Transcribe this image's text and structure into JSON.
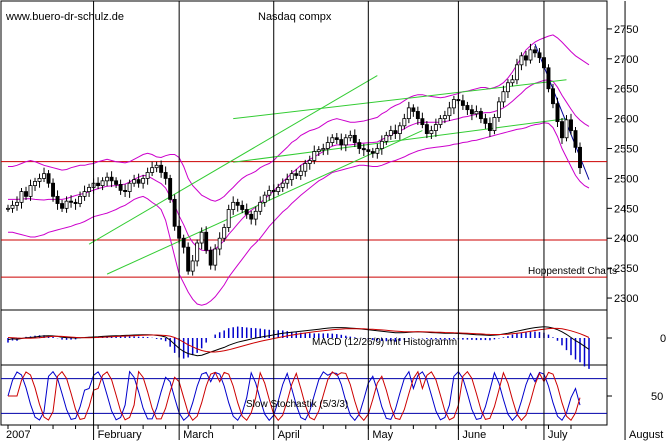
{
  "header": {
    "site": "www.buero-dr-schulz.de",
    "title": "Nasdaq compx",
    "source": "Hoppenstedt Charts"
  },
  "colors": {
    "bollinger": "#cc00cc",
    "trend": "#33cc33",
    "support": "#cc0000",
    "downtrend": "#000099",
    "macd_histogram": "#0000cc",
    "macd_line": "#000000",
    "signal_line": "#cc0000",
    "stoch_k": "#0000cc",
    "stoch_d": "#cc0000",
    "reference": "#0000aa"
  },
  "chart_data": [
    {
      "type": "candlestick",
      "title": "Nasdaq compx",
      "ylim": [
        2280,
        2790
      ],
      "yticks": [
        2300,
        2350,
        2400,
        2450,
        2500,
        2550,
        2600,
        2650,
        2700,
        2750
      ],
      "support_levels": [
        2528,
        2397,
        2335
      ],
      "close": [
        2450,
        2455,
        2460,
        2478,
        2470,
        2488,
        2495,
        2500,
        2508,
        2492,
        2470,
        2458,
        2450,
        2462,
        2460,
        2458,
        2470,
        2478,
        2485,
        2492,
        2488,
        2496,
        2502,
        2496,
        2490,
        2480,
        2478,
        2492,
        2498,
        2492,
        2500,
        2510,
        2518,
        2522,
        2510,
        2500,
        2465,
        2420,
        2400,
        2385,
        2345,
        2362,
        2392,
        2410,
        2380,
        2355,
        2382,
        2400,
        2418,
        2448,
        2460,
        2455,
        2448,
        2440,
        2432,
        2445,
        2460,
        2472,
        2480,
        2478,
        2485,
        2492,
        2498,
        2508,
        2505,
        2512,
        2525,
        2530,
        2545,
        2548,
        2550,
        2560,
        2568,
        2565,
        2556,
        2568,
        2572,
        2560,
        2550,
        2548,
        2545,
        2542,
        2550,
        2562,
        2572,
        2580,
        2575,
        2588,
        2600,
        2618,
        2612,
        2600,
        2590,
        2575,
        2580,
        2590,
        2600,
        2605,
        2618,
        2632,
        2630,
        2622,
        2615,
        2608,
        2612,
        2600,
        2592,
        2580,
        2602,
        2628,
        2645,
        2660,
        2665,
        2690,
        2705,
        2698,
        2715,
        2710,
        2702,
        2685,
        2650,
        2625,
        2595,
        2568,
        2598,
        2580,
        2552,
        2518
      ],
      "bollinger_upper": [
        2520,
        2520,
        2522,
        2525,
        2528,
        2530,
        2528,
        2525,
        2522,
        2520,
        2518,
        2516,
        2514,
        2515,
        2518,
        2520,
        2522,
        2522,
        2524,
        2525,
        2528,
        2530,
        2532,
        2530,
        2528,
        2527,
        2526,
        2528,
        2532,
        2536,
        2540,
        2542,
        2540,
        2536,
        2535,
        2538,
        2540,
        2540,
        2535,
        2520,
        2500,
        2488,
        2480,
        2472,
        2468,
        2464,
        2462,
        2465,
        2470,
        2478,
        2485,
        2493,
        2500,
        2505,
        2508,
        2512,
        2518,
        2522,
        2525,
        2530,
        2538,
        2545,
        2552,
        2560,
        2565,
        2572,
        2576,
        2580,
        2582,
        2585,
        2590,
        2595,
        2598,
        2600,
        2598,
        2596,
        2594,
        2594,
        2595,
        2596,
        2598,
        2600,
        2602,
        2608,
        2612,
        2618,
        2622,
        2625,
        2630,
        2635,
        2638,
        2640,
        2640,
        2638,
        2637,
        2636,
        2635,
        2636,
        2638,
        2640,
        2642,
        2645,
        2646,
        2648,
        2650,
        2652,
        2652,
        2650,
        2652,
        2655,
        2660,
        2668,
        2678,
        2690,
        2702,
        2715,
        2722,
        2728,
        2732,
        2735,
        2738,
        2740,
        2735,
        2728,
        2720,
        2712,
        2705,
        2700,
        2695,
        2690
      ],
      "bollinger_lower": [
        2410,
        2410,
        2408,
        2406,
        2404,
        2402,
        2402,
        2404,
        2406,
        2410,
        2412,
        2414,
        2416,
        2418,
        2420,
        2423,
        2425,
        2428,
        2432,
        2436,
        2438,
        2440,
        2442,
        2445,
        2448,
        2452,
        2455,
        2460,
        2465,
        2468,
        2470,
        2466,
        2460,
        2455,
        2448,
        2430,
        2400,
        2370,
        2340,
        2325,
        2310,
        2298,
        2290,
        2288,
        2290,
        2295,
        2302,
        2312,
        2322,
        2335,
        2345,
        2355,
        2365,
        2375,
        2385,
        2392,
        2400,
        2410,
        2420,
        2428,
        2436,
        2444,
        2450,
        2458,
        2465,
        2472,
        2478,
        2484,
        2490,
        2496,
        2500,
        2505,
        2510,
        2512,
        2514,
        2516,
        2518,
        2520,
        2522,
        2522,
        2521,
        2520,
        2520,
        2522,
        2525,
        2528,
        2530,
        2533,
        2536,
        2540,
        2543,
        2546,
        2548,
        2550,
        2551,
        2552,
        2553,
        2554,
        2555,
        2557,
        2558,
        2560,
        2561,
        2563,
        2564,
        2566,
        2568,
        2570,
        2572,
        2574,
        2576,
        2578,
        2580,
        2582,
        2583,
        2585,
        2588,
        2590,
        2591,
        2593,
        2592,
        2585,
        2570,
        2550,
        2535,
        2520,
        2505,
        2495,
        2488,
        2484
      ],
      "trendlines": [
        {
          "name": "lower-channel",
          "points": [
            [
              22,
              2340
            ],
            [
              92,
              2580
            ]
          ]
        },
        {
          "name": "upper-channel",
          "points": [
            [
              18,
              2390
            ],
            [
              82,
              2672
            ]
          ]
        },
        {
          "name": "mid-channel",
          "points": [
            [
              50,
              2527
            ],
            [
              124,
              2600
            ]
          ]
        },
        {
          "name": "upper-rising",
          "points": [
            [
              50,
              2600
            ],
            [
              124,
              2665
            ]
          ]
        },
        {
          "name": "downtrend",
          "points": [
            [
              117,
              2725
            ],
            [
              129,
              2498
            ]
          ]
        }
      ]
    },
    {
      "type": "line",
      "title": "MACD (12/26/9) mit Histogramm",
      "ylim": [
        -25,
        25
      ],
      "yticks": [
        0
      ],
      "macd": [
        -1.5,
        -0.8,
        -1.2,
        -0.5,
        0.2,
        0.5,
        1.0,
        1.5,
        2.0,
        2.2,
        2.0,
        1.5,
        0.8,
        0.4,
        0.2,
        0.0,
        0.3,
        0.5,
        0.8,
        1.0,
        1.2,
        1.5,
        1.8,
        2.0,
        2.2,
        2.3,
        2.5,
        2.7,
        2.9,
        3.0,
        3.1,
        3.2,
        3.0,
        2.5,
        2.0,
        1.0,
        -2.0,
        -6.0,
        -10.0,
        -13.0,
        -15.0,
        -16.0,
        -17.0,
        -16.5,
        -15.0,
        -13.5,
        -12.0,
        -10.5,
        -9.0,
        -7.0,
        -5.5,
        -4.0,
        -3.0,
        -2.0,
        -1.0,
        0.0,
        0.8,
        1.5,
        2.2,
        3.0,
        3.8,
        4.5,
        5.0,
        5.5,
        6.0,
        6.5,
        7.0,
        7.5,
        8.0,
        8.5,
        9.0,
        9.5,
        9.8,
        10.0,
        10.0,
        9.8,
        9.5,
        9.2,
        8.8,
        8.5,
        8.0,
        7.5,
        7.0,
        6.5,
        6.0,
        5.5,
        5.0,
        5.0,
        5.2,
        5.5,
        5.8,
        6.0,
        5.8,
        5.5,
        5.2,
        5.0,
        4.8,
        4.6,
        4.5,
        4.5,
        4.3,
        4.0,
        3.8,
        3.5,
        3.2,
        3.0,
        2.8,
        2.5,
        2.8,
        3.2,
        3.8,
        4.5,
        5.5,
        6.5,
        7.5,
        8.5,
        9.2,
        10.0,
        10.5,
        10.8,
        10.5,
        9.5,
        8.0,
        6.0,
        3.5,
        0.5,
        -2.5,
        -5.0,
        -8.0,
        -11.0
      ],
      "signal": [
        0.5,
        0.3,
        0.0,
        -0.2,
        -0.3,
        -0.2,
        0.0,
        0.3,
        0.8,
        1.2,
        1.5,
        1.6,
        1.5,
        1.2,
        0.9,
        0.6,
        0.4,
        0.3,
        0.3,
        0.4,
        0.6,
        0.8,
        1.0,
        1.2,
        1.4,
        1.6,
        1.8,
        2.0,
        2.2,
        2.4,
        2.6,
        2.8,
        2.9,
        2.9,
        2.7,
        2.4,
        1.8,
        0.5,
        -1.5,
        -4.0,
        -6.5,
        -8.5,
        -10.5,
        -12.0,
        -13.0,
        -13.5,
        -13.5,
        -13.0,
        -12.3,
        -11.3,
        -10.2,
        -9.0,
        -7.8,
        -6.6,
        -5.4,
        -4.3,
        -3.3,
        -2.3,
        -1.4,
        -0.5,
        0.4,
        1.2,
        2.0,
        2.8,
        3.5,
        4.2,
        4.8,
        5.4,
        6.0,
        6.5,
        7.0,
        7.5,
        7.9,
        8.3,
        8.6,
        8.8,
        8.9,
        8.9,
        8.9,
        8.8,
        8.6,
        8.4,
        8.1,
        7.8,
        7.4,
        7.0,
        6.6,
        6.3,
        6.1,
        6.0,
        6.0,
        6.0,
        6.0,
        5.9,
        5.8,
        5.6,
        5.5,
        5.3,
        5.2,
        5.0,
        4.9,
        4.7,
        4.5,
        4.3,
        4.1,
        3.9,
        3.7,
        3.5,
        3.4,
        3.4,
        3.5,
        3.7,
        4.0,
        4.5,
        5.1,
        5.8,
        6.5,
        7.2,
        7.9,
        8.5,
        9.0,
        9.2,
        9.2,
        8.8,
        8.0,
        6.9,
        5.6,
        4.1,
        2.4,
        0.5
      ],
      "histogram": [
        -2.0,
        -1.1,
        -1.2,
        -0.3,
        0.5,
        0.7,
        1.0,
        1.2,
        1.2,
        1.0,
        0.5,
        -0.1,
        -0.7,
        -0.8,
        -0.7,
        -0.6,
        -0.1,
        0.2,
        0.5,
        0.6,
        0.6,
        0.7,
        0.8,
        0.8,
        0.8,
        0.7,
        0.7,
        0.7,
        0.7,
        0.6,
        0.5,
        0.4,
        0.1,
        -0.4,
        -0.7,
        -1.4,
        -3.8,
        -6.5,
        -8.5,
        -9.0,
        -8.5,
        -7.5,
        -6.5,
        -4.5,
        -2.0,
        0.0,
        1.5,
        2.5,
        3.3,
        4.3,
        4.7,
        5.0,
        4.8,
        4.6,
        4.4,
        4.3,
        4.1,
        3.8,
        3.6,
        3.5,
        3.4,
        3.3,
        3.0,
        2.7,
        2.5,
        2.3,
        2.2,
        2.1,
        2.0,
        2.0,
        2.0,
        2.0,
        1.9,
        1.7,
        1.4,
        1.0,
        0.6,
        0.3,
        -0.1,
        -0.3,
        -0.6,
        -0.9,
        -1.1,
        -1.3,
        -1.4,
        -1.5,
        -1.6,
        -1.3,
        -0.9,
        -0.5,
        -0.2,
        0.0,
        -0.2,
        -0.4,
        -0.6,
        -0.6,
        -0.7,
        -0.7,
        -0.7,
        -0.5,
        -0.6,
        -0.7,
        -0.7,
        -0.8,
        -0.9,
        -0.9,
        -0.9,
        -1.0,
        -0.6,
        -0.2,
        0.3,
        0.8,
        1.5,
        2.0,
        2.4,
        2.7,
        2.7,
        2.8,
        2.6,
        2.3,
        1.5,
        0.3,
        -1.2,
        -3.2,
        -5.3,
        -7.5,
        -9.4,
        -10.6,
        -12.4,
        -13.5
      ]
    },
    {
      "type": "line",
      "title": "Slow Stochastik (5/3/3)",
      "ylim": [
        0,
        100
      ],
      "yticks": [
        50
      ],
      "reference_lines": [
        80,
        20
      ],
      "k_period_bars": 9,
      "k_phases": [
        0.0,
        0.3,
        0.1,
        0.5,
        0.8,
        0.2,
        0.6,
        0.9,
        0.4,
        0.7,
        0.1,
        0.3,
        0.6,
        0.2,
        0.9
      ],
      "k_amplitude": 42,
      "k_center": 50,
      "d_lag_bars": 1.5
    }
  ],
  "x_axis": {
    "month_labels": [
      "2007",
      "February",
      "March",
      "April",
      "May",
      "June",
      "July",
      "August"
    ],
    "month_bar_index": [
      -1,
      19,
      38,
      59,
      80,
      100,
      119,
      137
    ]
  },
  "layout_note_none": null
}
